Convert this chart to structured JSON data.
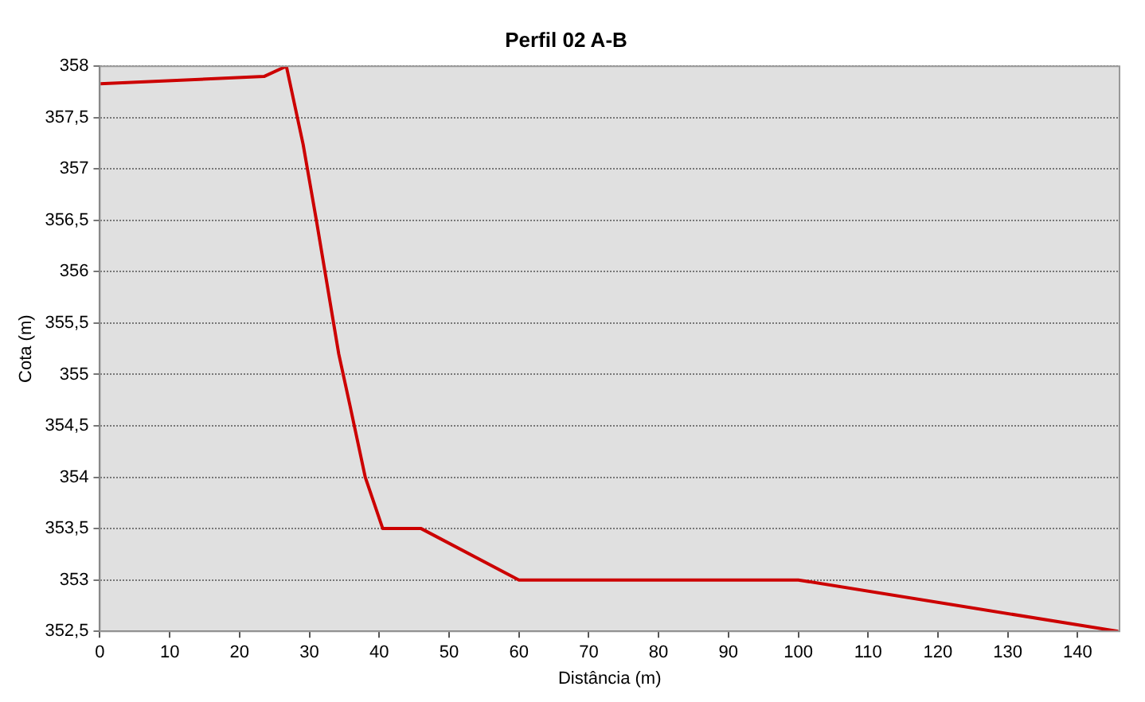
{
  "chart_data": {
    "type": "line",
    "title": "Perfil 02 A-B",
    "xlabel": "Distância (m)",
    "ylabel": "Cota (m)",
    "x": [
      0,
      23.5,
      26.7,
      29.1,
      31,
      34.2,
      35.8,
      38,
      40.5,
      46,
      60,
      100,
      145.8
    ],
    "series": [
      {
        "color": "#cc0000",
        "values": [
          357.83,
          357.9,
          358,
          357.24,
          356.5,
          355.2,
          354.7,
          354,
          353.5,
          353.5,
          353,
          353,
          352.5
        ]
      }
    ],
    "xlim": [
      0,
      146
    ],
    "xticks": [
      0,
      10,
      20,
      30,
      40,
      50,
      60,
      70,
      80,
      90,
      100,
      110,
      120,
      130,
      140
    ],
    "ylim": [
      352.5,
      358
    ],
    "yticks": [
      {
        "value": 352.5,
        "label": "352,5"
      },
      353,
      {
        "value": 353.5,
        "label": "353,5"
      },
      354,
      {
        "value": 354.5,
        "label": "354,5"
      },
      355,
      {
        "value": 355.5,
        "label": "355,5"
      },
      356,
      {
        "value": 356.5,
        "label": "356,5"
      },
      357,
      {
        "value": 357.5,
        "label": "357,5"
      },
      358
    ],
    "grid": "y",
    "legend": false,
    "marker": "none",
    "line_style": "solid"
  }
}
